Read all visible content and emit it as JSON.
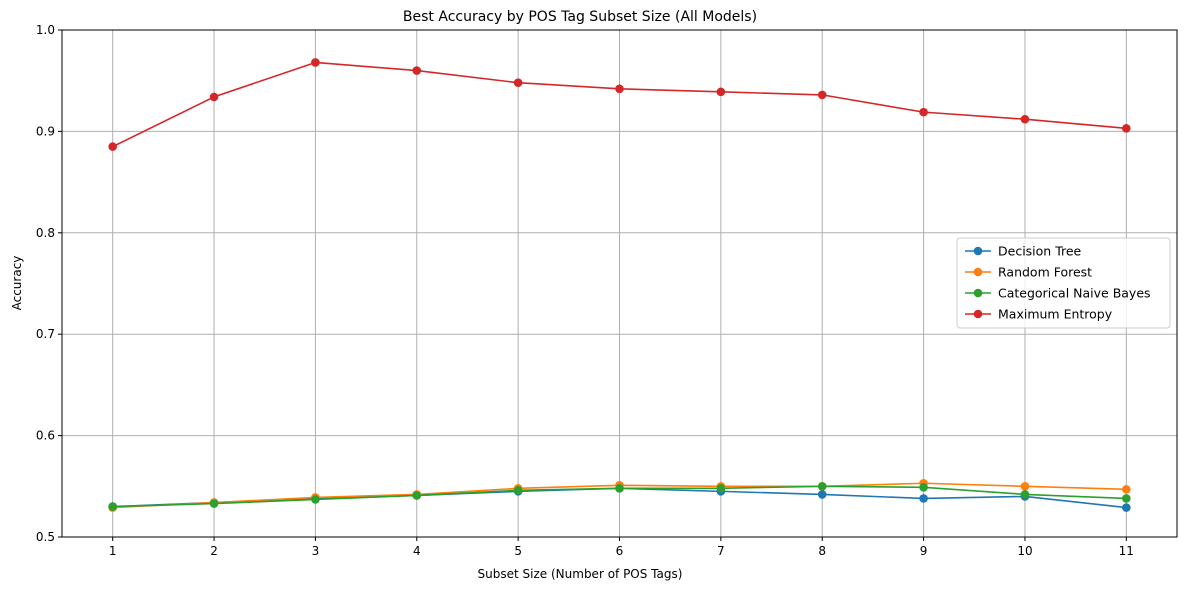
{
  "chart_data": {
    "type": "line",
    "title": "Best Accuracy by POS Tag Subset Size (All Models)",
    "xlabel": "Subset Size (Number of POS Tags)",
    "ylabel": "Accuracy",
    "x": [
      1,
      2,
      3,
      4,
      5,
      6,
      7,
      8,
      9,
      10,
      11
    ],
    "xticks": [
      "1",
      "2",
      "3",
      "4",
      "5",
      "6",
      "7",
      "8",
      "9",
      "10",
      "11"
    ],
    "yticks": [
      "0.5",
      "0.6",
      "0.7",
      "0.8",
      "0.9",
      "1.0"
    ],
    "xlim": [
      0.5,
      11.5
    ],
    "ylim": [
      0.5,
      1.0
    ],
    "grid": true,
    "legend_position": "center-right",
    "series": [
      {
        "name": "Decision Tree",
        "color": "#1f77b4",
        "marker": "circle",
        "values": [
          0.53,
          0.534,
          0.538,
          0.541,
          0.545,
          0.548,
          0.545,
          0.542,
          0.538,
          0.54,
          0.529
        ]
      },
      {
        "name": "Random Forest",
        "color": "#ff7f0e",
        "marker": "circle",
        "values": [
          0.529,
          0.534,
          0.539,
          0.542,
          0.548,
          0.551,
          0.55,
          0.55,
          0.553,
          0.55,
          0.547
        ]
      },
      {
        "name": "Categorical Naive Bayes",
        "color": "#2ca02c",
        "marker": "circle",
        "values": [
          0.53,
          0.533,
          0.537,
          0.541,
          0.546,
          0.548,
          0.548,
          0.55,
          0.549,
          0.542,
          0.538
        ]
      },
      {
        "name": "Maximum Entropy",
        "color": "#d62728",
        "marker": "circle",
        "values": [
          0.885,
          0.934,
          0.968,
          0.96,
          0.948,
          0.942,
          0.939,
          0.936,
          0.919,
          0.912,
          0.903
        ]
      }
    ]
  }
}
